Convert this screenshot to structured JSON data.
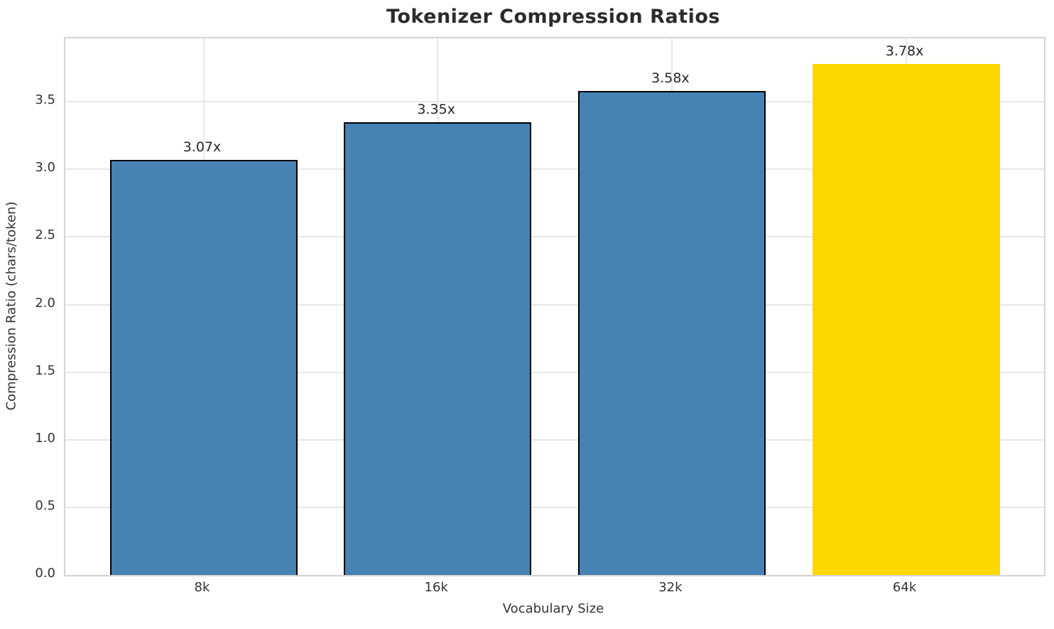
{
  "chart_data": {
    "type": "bar",
    "title": "Tokenizer Compression Ratios",
    "xlabel": "Vocabulary Size",
    "ylabel": "Compression Ratio (chars/token)",
    "categories": [
      "8k",
      "16k",
      "32k",
      "64k"
    ],
    "values": [
      3.07,
      3.35,
      3.58,
      3.78
    ],
    "value_labels": [
      "3.07x",
      "3.35x",
      "3.58x",
      "3.78x"
    ],
    "bar_colors": [
      "#4682B4",
      "#4682B4",
      "#4682B4",
      "#FFD700"
    ],
    "bar_edge_colors": [
      "#000000",
      "#000000",
      "#000000",
      "none"
    ],
    "highlighted_category": "64k",
    "yticks": [
      0.0,
      0.5,
      1.0,
      1.5,
      2.0,
      2.5,
      3.0,
      3.5
    ],
    "ytick_labels": [
      "0.0",
      "0.5",
      "1.0",
      "1.5",
      "2.0",
      "2.5",
      "3.0",
      "3.5"
    ],
    "ylim": [
      0,
      3.969
    ],
    "grid": true,
    "grid_color": "#e8e8e8",
    "spine_color": "#d4d4d4",
    "legend_position": "none"
  }
}
